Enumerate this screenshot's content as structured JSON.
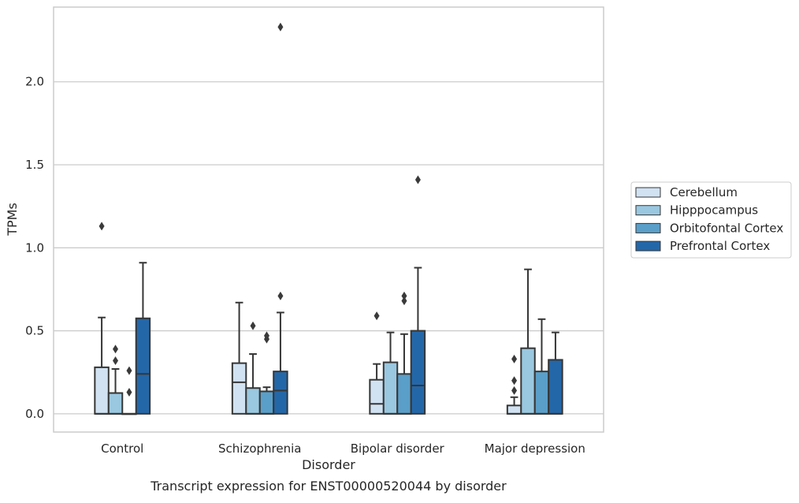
{
  "chart_data": {
    "type": "box",
    "title": "",
    "caption": "Transcript expression for ENST00000520044 by disorder",
    "xlabel": "Disorder",
    "ylabel": "TPMs",
    "ylim": [
      -0.11,
      2.45
    ],
    "yticks": [
      0.0,
      0.5,
      1.0,
      1.5,
      2.0
    ],
    "ytick_labels": [
      "0.0",
      "0.5",
      "1.0",
      "1.5",
      "2.0"
    ],
    "grid": "horizontal",
    "legend_position": "right",
    "categories": [
      "Control",
      "Schizophrenia",
      "Bipolar disorder",
      "Major depression"
    ],
    "series": [
      {
        "name": "Cerebellum",
        "color": "#d1e2f2",
        "boxes": [
          {
            "q1": 0.0,
            "median": 0.0,
            "q3": 0.28,
            "whisker_low": 0.0,
            "whisker_high": 0.58,
            "outliers": [
              1.13
            ]
          },
          {
            "q1": 0.0,
            "median": 0.19,
            "q3": 0.305,
            "whisker_low": 0.0,
            "whisker_high": 0.67,
            "outliers": []
          },
          {
            "q1": 0.0,
            "median": 0.06,
            "q3": 0.205,
            "whisker_low": 0.0,
            "whisker_high": 0.3,
            "outliers": [
              0.59
            ]
          },
          {
            "q1": 0.0,
            "median": 0.0,
            "q3": 0.05,
            "whisker_low": 0.0,
            "whisker_high": 0.1,
            "outliers": [
              0.14,
              0.2,
              0.33
            ]
          }
        ]
      },
      {
        "name": "Hipppocampus",
        "color": "#9ac8e0",
        "boxes": [
          {
            "q1": 0.0,
            "median": 0.0,
            "q3": 0.125,
            "whisker_low": 0.0,
            "whisker_high": 0.27,
            "outliers": [
              0.32,
              0.39
            ]
          },
          {
            "q1": 0.0,
            "median": 0.0,
            "q3": 0.155,
            "whisker_low": 0.0,
            "whisker_high": 0.36,
            "outliers": [
              0.53
            ]
          },
          {
            "q1": 0.0,
            "median": 0.0,
            "q3": 0.31,
            "whisker_low": 0.0,
            "whisker_high": 0.49,
            "outliers": []
          },
          {
            "q1": 0.0,
            "median": 0.0,
            "q3": 0.395,
            "whisker_low": 0.0,
            "whisker_high": 0.87,
            "outliers": []
          }
        ]
      },
      {
        "name": "Orbitofontal Cortex",
        "color": "#5a9fc9",
        "boxes": [
          {
            "q1": 0.0,
            "median": 0.0,
            "q3": 0.0,
            "whisker_low": 0.0,
            "whisker_high": 0.0,
            "outliers": [
              0.13,
              0.26
            ]
          },
          {
            "q1": 0.0,
            "median": 0.0,
            "q3": 0.135,
            "whisker_low": 0.0,
            "whisker_high": 0.16,
            "outliers": [
              0.45,
              0.47
            ]
          },
          {
            "q1": 0.0,
            "median": 0.0,
            "q3": 0.24,
            "whisker_low": 0.0,
            "whisker_high": 0.48,
            "outliers": [
              0.68,
              0.71
            ]
          },
          {
            "q1": 0.0,
            "median": 0.0,
            "q3": 0.255,
            "whisker_low": 0.0,
            "whisker_high": 0.57,
            "outliers": []
          }
        ]
      },
      {
        "name": "Prefrontal Cortex",
        "color": "#2467a8",
        "boxes": [
          {
            "q1": 0.0,
            "median": 0.24,
            "q3": 0.575,
            "whisker_low": 0.0,
            "whisker_high": 0.91,
            "outliers": []
          },
          {
            "q1": 0.0,
            "median": 0.14,
            "q3": 0.255,
            "whisker_low": 0.0,
            "whisker_high": 0.61,
            "outliers": [
              2.33,
              0.71
            ]
          },
          {
            "q1": 0.0,
            "median": 0.17,
            "q3": 0.5,
            "whisker_low": 0.0,
            "whisker_high": 0.88,
            "outliers": [
              1.41
            ]
          },
          {
            "q1": 0.0,
            "median": 0.0,
            "q3": 0.325,
            "whisker_low": 0.0,
            "whisker_high": 0.49,
            "outliers": []
          }
        ]
      }
    ]
  }
}
